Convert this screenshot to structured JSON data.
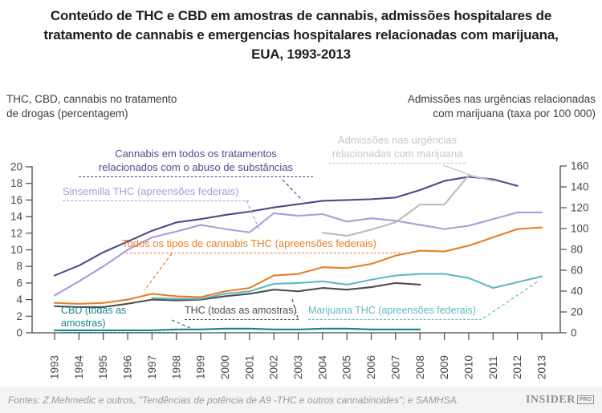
{
  "title": "Conteúdo de THC e CBD em amostras de cannabis, admissões hospitalares  de\ntratamento de cannabis e emergencias hospitalares relacionadas com marijuana,\nEUA, 1993-2013",
  "axis_headers": {
    "left": "THC, CBD, cannabis no tratamento\nde drogas (percentagem)",
    "right": "Admissões nas urgências relacionadas\ncom marijuana (taxa por 100 000)"
  },
  "annotations": {
    "treatment": "Cannabis em todos os tratamentos\nrelacionados com o abuso de substâncias",
    "sinsemilla": "Sinsemilla THC (apreensões federais)",
    "er": "Admissões nas urgências\nrelacionadas com marijuana",
    "all_thc": "Todos os tipos de cannabis THC (apreensões federais)",
    "cbd": "CBD (todas as amostras)",
    "thc": "THC (todas as amostras)",
    "marijuana": "Marijuana THC (apreensões federais)"
  },
  "chart_data": {
    "type": "line",
    "x": [
      1993,
      1994,
      1995,
      1996,
      1997,
      1998,
      1999,
      2000,
      2001,
      2002,
      2003,
      2004,
      2005,
      2006,
      2007,
      2008,
      2009,
      2010,
      2011,
      2012,
      2013
    ],
    "left_axis": {
      "label": "THC, CBD, cannabis no tratamento de drogas (percentagem)",
      "range": [
        0,
        20
      ],
      "ticks": [
        0,
        2,
        4,
        6,
        8,
        10,
        12,
        14,
        16,
        18,
        20
      ]
    },
    "right_axis": {
      "label": "Admissões nas urgências relacionadas com marijuana (taxa por 100 000)",
      "range": [
        0,
        160
      ],
      "ticks": [
        0,
        20,
        40,
        60,
        80,
        100,
        120,
        140,
        160
      ]
    },
    "grid": false,
    "series": [
      {
        "key": "treatment",
        "name": "Cannabis em todos os tratamentos relacionados com o abuso de substâncias",
        "axis": "left",
        "color": "#4e4b8d",
        "start_year": 1993,
        "values": [
          6.9,
          8.1,
          9.7,
          11.0,
          12.3,
          13.3,
          13.7,
          14.2,
          14.6,
          15.1,
          15.5,
          15.9,
          16.0,
          16.1,
          16.3,
          17.2,
          18.3,
          18.8,
          18.5,
          17.7
        ]
      },
      {
        "key": "sinsemilla",
        "name": "Sinsemilla THC (apreensões federais)",
        "axis": "left",
        "color": "#a2a0de",
        "start_year": 1993,
        "values": [
          4.5,
          6.2,
          8.0,
          10.0,
          11.5,
          12.2,
          13.0,
          12.5,
          12.1,
          14.4,
          14.1,
          14.3,
          13.4,
          13.8,
          13.5,
          13.0,
          12.5,
          12.9,
          13.7,
          14.5,
          14.5
        ]
      },
      {
        "key": "er",
        "name": "Admissões nas urgências relacionadas com marijuana",
        "axis": "right",
        "color": "#bcbcbc",
        "start_year": 2004,
        "values": [
          96,
          93,
          99,
          106,
          123,
          123,
          151,
          146
        ]
      },
      {
        "key": "all_thc",
        "name": "Todos os tipos de cannabis THC (apreensões federais)",
        "axis": "left",
        "color": "#e87e24",
        "start_year": 1993,
        "values": [
          3.6,
          3.5,
          3.6,
          4.0,
          4.7,
          4.4,
          4.3,
          5.0,
          5.4,
          6.9,
          7.1,
          7.9,
          7.8,
          8.3,
          9.3,
          9.9,
          9.8,
          10.5,
          11.5,
          12.5,
          12.7
        ]
      },
      {
        "key": "thc",
        "name": "THC (todas as amostras)",
        "axis": "left",
        "color": "#4d4d4d",
        "start_year": 1993,
        "values": [
          3.2,
          3.1,
          3.1,
          3.5,
          4.0,
          3.9,
          4.0,
          4.4,
          4.7,
          5.2,
          5.0,
          5.4,
          5.2,
          5.5,
          6.0,
          5.8
        ]
      },
      {
        "key": "marijuana",
        "name": "Marijuana THC (apreensões federais)",
        "axis": "left",
        "color": "#5fb9c6",
        "start_year": 1997,
        "values": [
          4.2,
          4.1,
          4.1,
          4.7,
          5.0,
          5.9,
          6.0,
          6.2,
          5.8,
          6.4,
          6.9,
          7.1,
          7.1,
          6.6,
          5.4,
          6.1,
          6.8
        ]
      },
      {
        "key": "cbd",
        "name": "CBD (todas as amostras)",
        "axis": "left",
        "color": "#17858d",
        "start_year": 1993,
        "values": [
          0.3,
          0.3,
          0.3,
          0.3,
          0.3,
          0.4,
          0.4,
          0.5,
          0.5,
          0.4,
          0.4,
          0.5,
          0.5,
          0.4,
          0.4,
          0.4
        ]
      }
    ]
  },
  "footer": {
    "source": "Fontes: Z.Mehmedic e outros, \"Tendências de potência de A9 -THC e outros cannabinoides\"; e SAMHSA.",
    "brand": "INSIDER",
    "brand_suffix": "PRO"
  }
}
